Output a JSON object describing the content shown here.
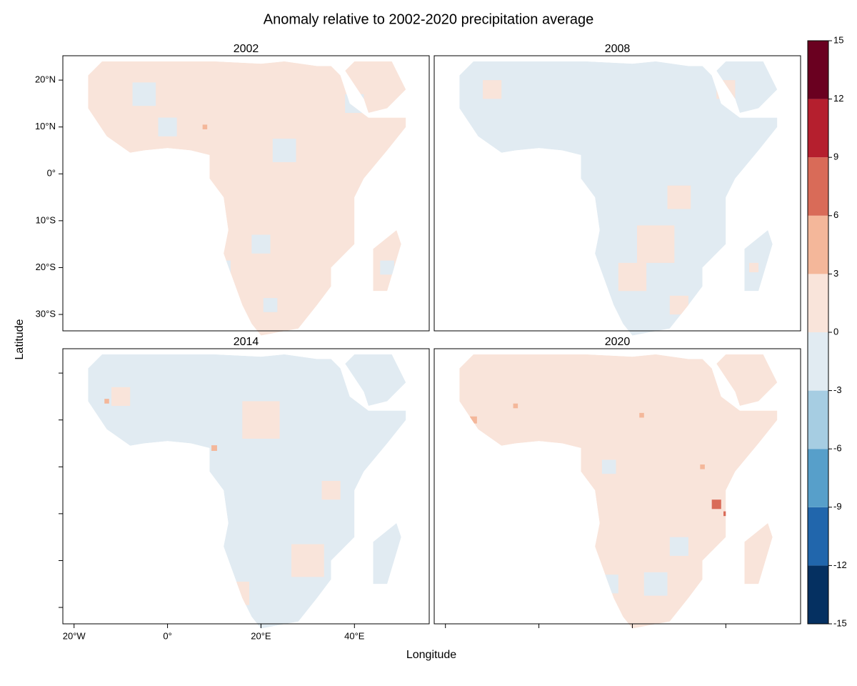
{
  "chart_data": {
    "type": "map",
    "title": "Anomaly relative to 2002-2020 precipitation average",
    "x_label": "Longitude",
    "y_label": "Latitude",
    "xlim": [
      -22.4,
      56
    ],
    "ylim": [
      -33.5,
      25.2
    ],
    "xticks": [
      {
        "value": -20,
        "label": "20°W"
      },
      {
        "value": 0,
        "label": "0°"
      },
      {
        "value": 20,
        "label": "20°E"
      },
      {
        "value": 40,
        "label": "40°E"
      }
    ],
    "yticks": [
      {
        "value": 20,
        "label": "20°N"
      },
      {
        "value": 10,
        "label": "10°N"
      },
      {
        "value": 0,
        "label": "0°"
      },
      {
        "value": -10,
        "label": "10°S"
      },
      {
        "value": -20,
        "label": "20°S"
      },
      {
        "value": -30,
        "label": "30°S"
      }
    ],
    "colorbar": {
      "ticks": [
        -15,
        -12,
        -9,
        -6,
        -3,
        0,
        3,
        6,
        9,
        12,
        15
      ],
      "colors": [
        "#053061",
        "#2166ac",
        "#579fca",
        "#a6cde2",
        "#e1ebf2",
        "#f9e4da",
        "#f4b79a",
        "#d96b58",
        "#b51f2e",
        "#6a0020"
      ]
    },
    "panels": [
      {
        "title": "2002",
        "base": 1,
        "cells": [
          {
            "lon": -5,
            "lat": 17,
            "value": -1,
            "size": 5
          },
          {
            "lon": 0,
            "lat": 10,
            "value": -1,
            "size": 4
          },
          {
            "lon": 25,
            "lat": 5,
            "value": -1,
            "size": 5
          },
          {
            "lon": 20,
            "lat": -15,
            "value": -1,
            "size": 4
          },
          {
            "lon": 22,
            "lat": -28,
            "value": -1,
            "size": 3
          },
          {
            "lon": 40,
            "lat": 15,
            "value": -1,
            "size": 4
          },
          {
            "lon": 12,
            "lat": -20,
            "value": -1,
            "size": 3
          },
          {
            "lon": 47,
            "lat": -20,
            "value": -1,
            "size": 3
          },
          {
            "lon": 8,
            "lat": 10,
            "value": 4,
            "size": 1
          }
        ]
      },
      {
        "title": "2008",
        "base": -1,
        "cells": [
          {
            "lon": 25,
            "lat": -15,
            "value": 1,
            "size": 8
          },
          {
            "lon": 20,
            "lat": -22,
            "value": 1,
            "size": 6
          },
          {
            "lon": 30,
            "lat": -28,
            "value": 1,
            "size": 4
          },
          {
            "lon": 40,
            "lat": 18,
            "value": 1,
            "size": 4
          },
          {
            "lon": -10,
            "lat": 18,
            "value": 1,
            "size": 4
          },
          {
            "lon": 30,
            "lat": -5,
            "value": 1,
            "size": 5
          },
          {
            "lon": 46,
            "lat": -20,
            "value": 1,
            "size": 2
          },
          {
            "lon": 10,
            "lat": -15,
            "value": 5,
            "size": 1.5
          },
          {
            "lon": 10,
            "lat": -13,
            "value": 13,
            "size": 1
          },
          {
            "lon": -16,
            "lat": 11,
            "value": -4,
            "size": 1
          }
        ]
      },
      {
        "title": "2014",
        "base": -1,
        "cells": [
          {
            "lon": 20,
            "lat": 10,
            "value": 1,
            "size": 8
          },
          {
            "lon": 30,
            "lat": -20,
            "value": 1,
            "size": 7
          },
          {
            "lon": 15,
            "lat": -27,
            "value": 1,
            "size": 5
          },
          {
            "lon": -10,
            "lat": 15,
            "value": 1,
            "size": 4
          },
          {
            "lon": 35,
            "lat": -5,
            "value": 1,
            "size": 4
          },
          {
            "lon": -13,
            "lat": 14,
            "value": 4,
            "size": 1
          },
          {
            "lon": 10,
            "lat": 4,
            "value": 5,
            "size": 1.2
          }
        ]
      },
      {
        "title": "2020",
        "base": 1,
        "cells": [
          {
            "lon": 25,
            "lat": -25,
            "value": -1,
            "size": 5
          },
          {
            "lon": 15,
            "lat": -25,
            "value": -1,
            "size": 4
          },
          {
            "lon": 30,
            "lat": -17,
            "value": -1,
            "size": 4
          },
          {
            "lon": 15,
            "lat": 0,
            "value": -1,
            "size": 3
          },
          {
            "lon": -14,
            "lat": 10,
            "value": 4,
            "size": 1.5
          },
          {
            "lon": 10,
            "lat": -13,
            "value": 6,
            "size": 1.5
          },
          {
            "lon": 10,
            "lat": -13,
            "value": 10,
            "size": 0.8
          },
          {
            "lon": 38,
            "lat": -8,
            "value": 6,
            "size": 2
          },
          {
            "lon": 40,
            "lat": -10,
            "value": 8,
            "size": 1
          },
          {
            "lon": -5,
            "lat": 13,
            "value": 4,
            "size": 1
          },
          {
            "lon": 35,
            "lat": 0,
            "value": 4,
            "size": 1
          },
          {
            "lon": 22,
            "lat": 11,
            "value": 4,
            "size": 1
          },
          {
            "lon": 8,
            "lat": 0,
            "value": -4,
            "size": 1
          }
        ]
      }
    ]
  }
}
